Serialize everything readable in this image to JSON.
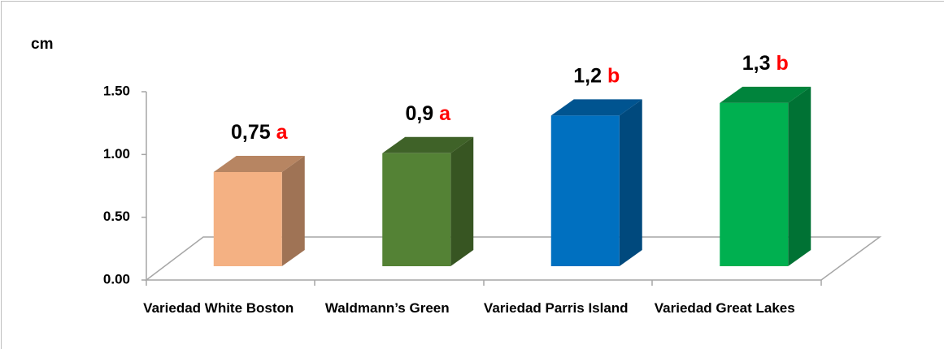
{
  "chart_data": {
    "type": "bar3d",
    "y_label": "cm",
    "categories": [
      "Variedad White Boston",
      "Waldmann’s Green",
      "Variedad Parris Island",
      "Variedad Great Lakes"
    ],
    "values": [
      0.75,
      0.9,
      1.2,
      1.3
    ],
    "value_labels": [
      "0,75",
      "0,9",
      "1,2",
      "1,3"
    ],
    "significance": [
      "a",
      "a",
      "b",
      "b"
    ],
    "colors": [
      "#f4b183",
      "#548235",
      "#0070c0",
      "#00b050"
    ],
    "ylim": [
      0,
      1.5
    ],
    "yticks": [
      {
        "value": 0,
        "label": "0.00"
      },
      {
        "value": 0.5,
        "label": "0.50"
      },
      {
        "value": 1,
        "label": "1.00"
      },
      {
        "value": 1.5,
        "label": "1.50"
      }
    ]
  }
}
